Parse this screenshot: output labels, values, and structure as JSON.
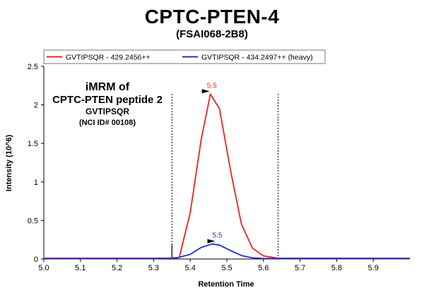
{
  "header": {
    "title": "CPTC-PTEN-4",
    "subtitle": "(FSAI068-2B8)"
  },
  "chart_data": {
    "type": "line",
    "title": "CPTC-PTEN-4",
    "subtitle": "(FSAI068-2B8)",
    "xlabel": "Retention Time",
    "ylabel": "Intensity (10^6)",
    "xlim": [
      5.0,
      6.0
    ],
    "ylim": [
      0,
      2.5
    ],
    "xticks": [
      5.0,
      5.1,
      5.2,
      5.3,
      5.4,
      5.5,
      5.6,
      5.7,
      5.8,
      5.9
    ],
    "xtick_labels": [
      "5.0",
      "5.1",
      "5.2",
      "5.3",
      "5.4",
      "5.5",
      "5.6",
      "5.7",
      "5.8",
      "5.9"
    ],
    "yticks": [
      0,
      0.5,
      1,
      1.5,
      2,
      2.5
    ],
    "ytick_labels": [
      "0",
      "0.5",
      "1",
      "1.5",
      "2",
      "2.5"
    ],
    "grid": false,
    "legend_position": "top",
    "annotation_lines": [
      "iMRM of",
      "CPTC-PTEN peptide 2",
      "GVTIPSQR",
      "(NCI ID# 00108)"
    ],
    "integration_bounds": [
      5.35,
      5.64
    ],
    "series": [
      {
        "name": "GVTIPSQR - 429.2456++",
        "color": "#e8231f",
        "x": [
          5.0,
          5.3,
          5.34,
          5.37,
          5.4,
          5.43,
          5.455,
          5.48,
          5.51,
          5.54,
          5.57,
          5.6,
          5.64,
          6.0
        ],
        "y": [
          0.01,
          0.01,
          0.01,
          0.02,
          0.6,
          1.55,
          2.14,
          1.95,
          1.15,
          0.45,
          0.14,
          0.04,
          0.01,
          0.01
        ],
        "peak_label": "5.5",
        "peak_x": 5.455,
        "peak_y": 2.14
      },
      {
        "name": "GVTIPSQR - 434.2497++ (heavy)",
        "color": "#1c2fd2",
        "x": [
          5.0,
          5.3,
          5.36,
          5.4,
          5.43,
          5.46,
          5.48,
          5.51,
          5.54,
          5.57,
          5.6,
          6.0
        ],
        "y": [
          0.005,
          0.005,
          0.01,
          0.06,
          0.15,
          0.195,
          0.18,
          0.11,
          0.045,
          0.015,
          0.006,
          0.005
        ],
        "peak_label": "5.5",
        "peak_x": 5.47,
        "peak_y": 0.195
      }
    ]
  }
}
